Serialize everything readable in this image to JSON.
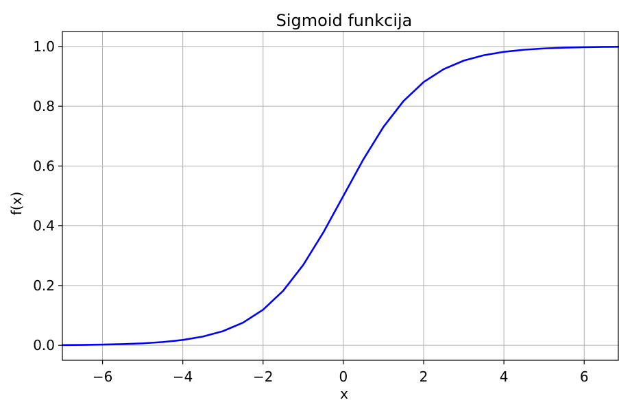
{
  "chart_data": {
    "type": "line",
    "title": "Sigmoid funkcija",
    "xlabel": "x",
    "ylabel": "f(x)",
    "xlim": [
      -7,
      6.85
    ],
    "ylim": [
      -0.05,
      1.05
    ],
    "xticks": [
      -6,
      -4,
      -2,
      0,
      2,
      4,
      6
    ],
    "xtick_labels": [
      "−6",
      "−4",
      "−2",
      "0",
      "2",
      "4",
      "6"
    ],
    "yticks": [
      0.0,
      0.2,
      0.4,
      0.6,
      0.8,
      1.0
    ],
    "ytick_labels": [
      "0.0",
      "0.2",
      "0.4",
      "0.6",
      "0.8",
      "1.0"
    ],
    "grid": true,
    "series": [
      {
        "color": "#0000ff",
        "x": [
          -7,
          -6.5,
          -6,
          -5.5,
          -5,
          -4.5,
          -4,
          -3.5,
          -3,
          -2.5,
          -2,
          -1.5,
          -1,
          -0.5,
          0,
          0.5,
          1,
          1.5,
          2,
          2.5,
          3,
          3.5,
          4,
          4.5,
          5,
          5.5,
          6,
          6.5,
          6.85
        ],
        "y": [
          0.0009,
          0.0015,
          0.0025,
          0.0041,
          0.0067,
          0.011,
          0.018,
          0.0293,
          0.0474,
          0.0759,
          0.1192,
          0.1824,
          0.2689,
          0.3775,
          0.5,
          0.6225,
          0.7311,
          0.8176,
          0.8808,
          0.9241,
          0.9526,
          0.9707,
          0.982,
          0.989,
          0.9933,
          0.9959,
          0.9975,
          0.9985,
          0.9989
        ]
      }
    ]
  }
}
